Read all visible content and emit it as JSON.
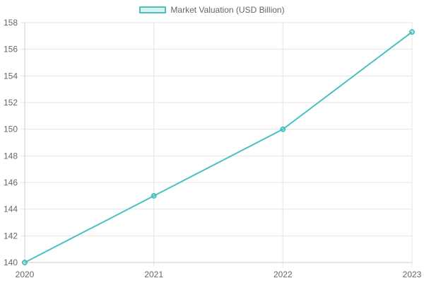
{
  "chart_data": {
    "type": "line",
    "title": "",
    "categories": [
      "2020",
      "2021",
      "2022",
      "2023"
    ],
    "series": [
      {
        "name": "Market Valuation (USD Billion)",
        "values": [
          140,
          145,
          150,
          157.3
        ],
        "color": "#4bc0c0"
      }
    ],
    "xlabel": "",
    "ylabel": "",
    "ylim": [
      140,
      158
    ],
    "yticks": [
      140,
      142,
      144,
      146,
      148,
      150,
      152,
      154,
      156,
      158
    ],
    "grid": true,
    "legend_position": "top"
  },
  "legend": {
    "label": "Market Valuation (USD Billion)"
  }
}
